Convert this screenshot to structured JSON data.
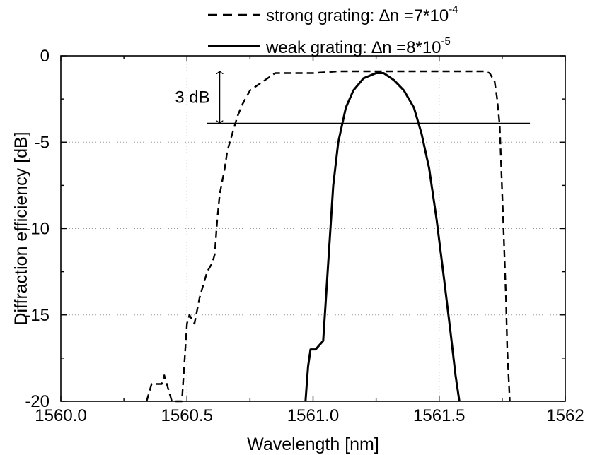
{
  "chart_data": {
    "type": "line",
    "title": "",
    "xlabel": "Wavelength [nm]",
    "ylabel": "Diffraction efficiency [dB]",
    "xlim": [
      1560.0,
      1562.0
    ],
    "ylim": [
      -20,
      0
    ],
    "x_ticks": [
      "1560.0",
      "1560.5",
      "1561.0",
      "1561.5",
      "1562"
    ],
    "x_tick_values": [
      1560.0,
      1560.5,
      1561.0,
      1561.5,
      1562.0
    ],
    "y_ticks": [
      "0",
      "-5",
      "-10",
      "-15",
      "-20"
    ],
    "y_tick_values": [
      0,
      -5,
      -10,
      -15,
      -20
    ],
    "grid": "dotted",
    "legend_position": "top (above plot)",
    "series": [
      {
        "name": "strong grating",
        "legend_prefix": "strong grating: ",
        "legend_delta": "∆n =7*10",
        "legend_exp": "-4",
        "line_style": "dashed",
        "x": [
          1560.34,
          1560.36,
          1560.4,
          1560.41,
          1560.44,
          1560.48,
          1560.5,
          1560.51,
          1560.53,
          1560.55,
          1560.58,
          1560.6,
          1560.61,
          1560.62,
          1560.63,
          1560.65,
          1560.66,
          1560.68,
          1560.7,
          1560.72,
          1560.75,
          1560.8,
          1560.85,
          1560.9,
          1561.0,
          1561.1,
          1561.2,
          1561.3,
          1561.4,
          1561.5,
          1561.6,
          1561.68,
          1561.7,
          1561.72,
          1561.73,
          1561.74,
          1561.745,
          1561.75,
          1561.755,
          1561.76,
          1561.765,
          1561.77,
          1561.78
        ],
        "y": [
          -20.0,
          -19.0,
          -19.0,
          -18.5,
          -20.0,
          -20.0,
          -15.5,
          -15.0,
          -15.5,
          -14.0,
          -12.5,
          -12.0,
          -11.5,
          -9.5,
          -8.0,
          -6.5,
          -5.5,
          -4.5,
          -3.5,
          -2.8,
          -2.0,
          -1.5,
          -1.0,
          -1.0,
          -1.0,
          -0.9,
          -0.9,
          -0.9,
          -0.9,
          -0.9,
          -0.9,
          -0.9,
          -1.0,
          -1.5,
          -2.5,
          -4.0,
          -6.0,
          -8.0,
          -10.0,
          -12.0,
          -14.0,
          -17.0,
          -20.0
        ]
      },
      {
        "name": "weak grating",
        "legend_prefix": "weak grating: ",
        "legend_delta": "∆n =8*10",
        "legend_exp": "-5",
        "line_style": "solid",
        "x": [
          1560.97,
          1560.98,
          1560.99,
          1561.01,
          1561.04,
          1561.06,
          1561.08,
          1561.1,
          1561.13,
          1561.16,
          1561.2,
          1561.25,
          1561.28,
          1561.32,
          1561.36,
          1561.4,
          1561.43,
          1561.46,
          1561.49,
          1561.52,
          1561.545,
          1561.565,
          1561.58
        ],
        "y": [
          -20.0,
          -18.0,
          -17.0,
          -17.0,
          -16.5,
          -12.0,
          -7.5,
          -5.0,
          -3.0,
          -2.0,
          -1.3,
          -1.0,
          -1.0,
          -1.4,
          -2.0,
          -3.0,
          -4.5,
          -6.5,
          -9.5,
          -13.0,
          -16.0,
          -18.5,
          -20.0
        ]
      }
    ],
    "annotations": [
      {
        "text": "3 dB",
        "type": "double-arrow",
        "x": 1560.63,
        "y_from": -0.9,
        "y_to": -3.9
      },
      {
        "type": "reference-line",
        "y": -3.9,
        "x_from": 1560.58,
        "x_to": 1561.86
      }
    ]
  }
}
